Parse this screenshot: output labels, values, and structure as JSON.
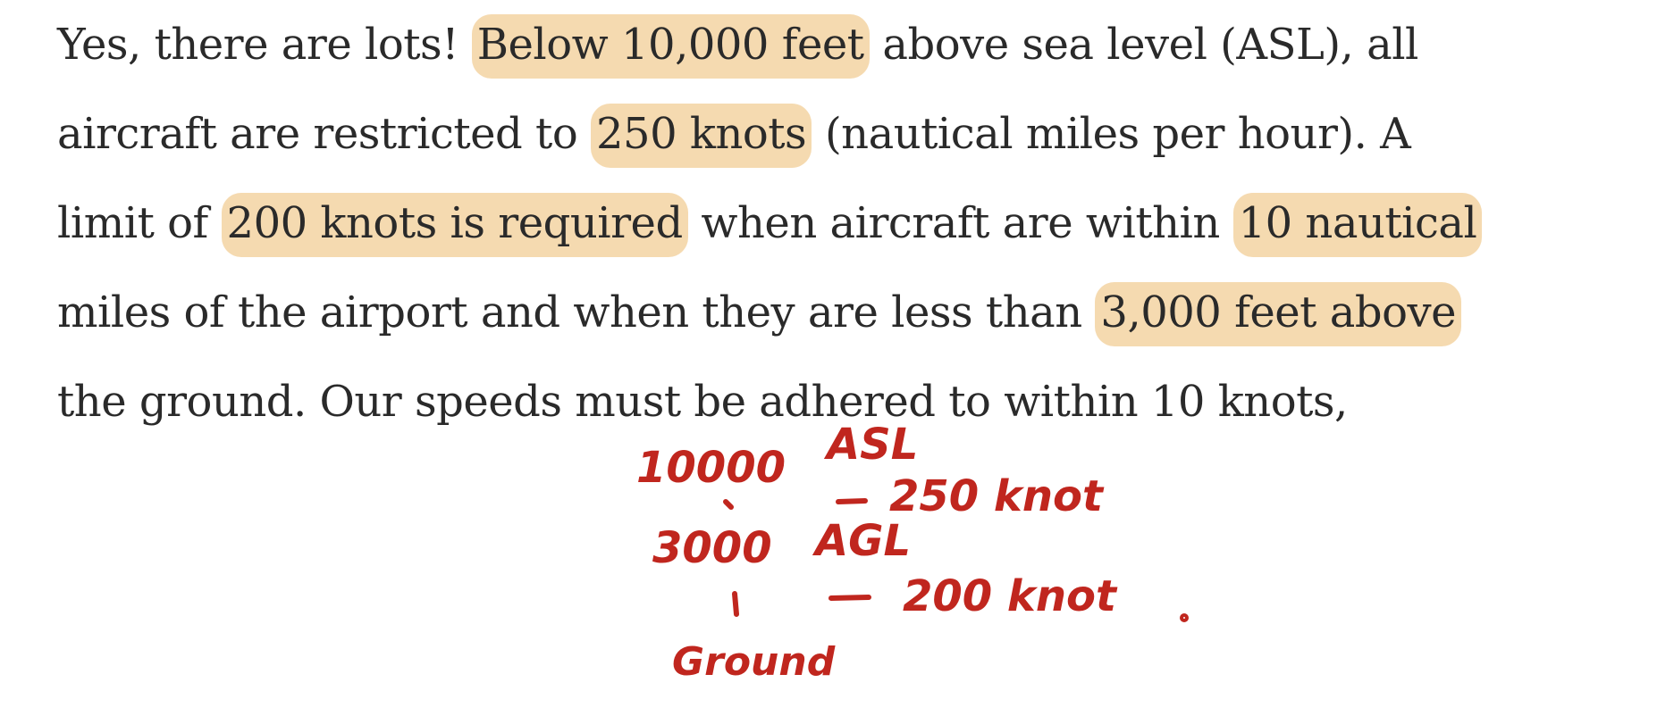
{
  "paragraph": {
    "lines": [
      [
        {
          "t": "Yes, there are lots! "
        },
        {
          "t": "Below 10,000 feet",
          "hl": true
        },
        {
          "t": " above sea level (ASL), all"
        }
      ],
      [
        {
          "t": "aircraft are restricted to "
        },
        {
          "t": "250 knots",
          "hl": true
        },
        {
          "t": " (nautical miles per hour). A"
        }
      ],
      [
        {
          "t": "limit of "
        },
        {
          "t": "200 knots is required",
          "hl": true
        },
        {
          "t": " when aircraft are within "
        },
        {
          "t": "10 nautical",
          "hl": true
        }
      ],
      [
        {
          "t": "miles of the airport and when they are less than "
        },
        {
          "t": "3,000 feet above",
          "hl": true
        }
      ],
      [
        {
          "t": "the ground. Our speeds must be adhered to within 10 knots,"
        }
      ]
    ]
  },
  "colors": {
    "text": "#2a2a2a",
    "highlight": "#f5dab0",
    "ink": "#c0261e"
  },
  "handwritten_notes": {
    "line1_alt": "10000",
    "line1_unit": "ASL",
    "line2_speed": "250 knot",
    "line3_alt": "3000",
    "line3_unit": "AGL",
    "line4_speed": "200 knot",
    "line5_label": "Ground"
  }
}
